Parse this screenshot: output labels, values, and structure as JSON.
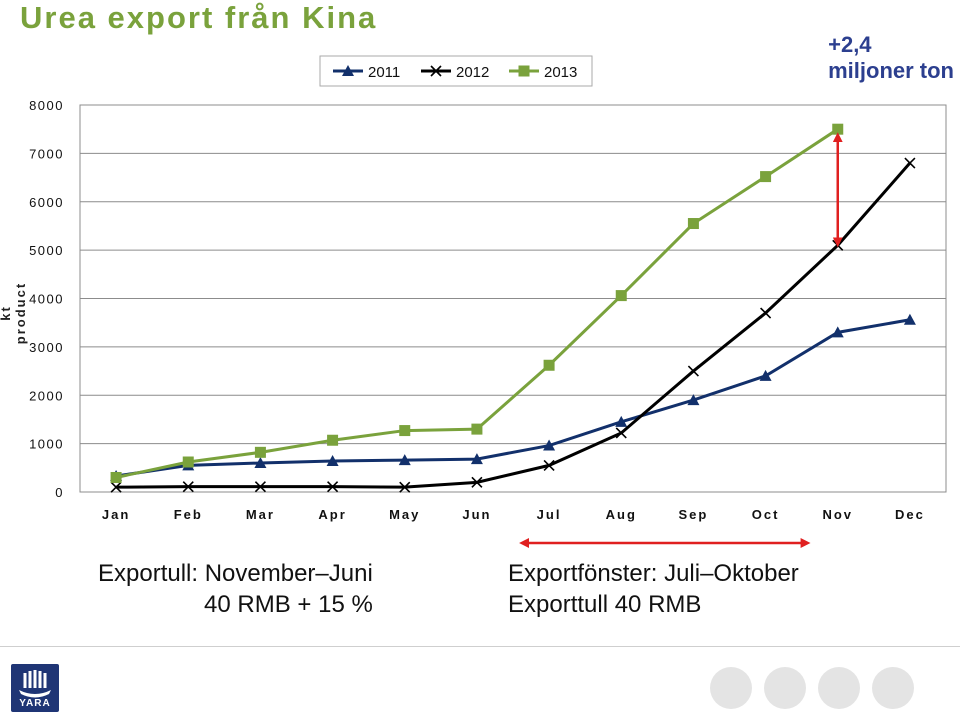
{
  "slide": {
    "title": "Urea export från Kina",
    "annotation_line1": "+2,4",
    "annotation_line2": "miljoner ton",
    "note_left_line1": "Exportull: November–Juni",
    "note_left_line2": "40 RMB + 15 %",
    "note_right_line1": "Exportfönster: Juli–Oktober",
    "note_right_line2": "Exporttull 40 RMB",
    "logo_text": "YARA"
  },
  "colors": {
    "s2011": "#12306b",
    "s2012": "#000000",
    "s2013": "#7aa23c",
    "annotation": "#2c3f8f",
    "arrow": "#e02020"
  },
  "chart_data": {
    "type": "line",
    "ylabel": "kt product",
    "xlabel": "",
    "categories": [
      "Jan",
      "Feb",
      "Mar",
      "Apr",
      "May",
      "Jun",
      "Jul",
      "Aug",
      "Sep",
      "Oct",
      "Nov",
      "Dec"
    ],
    "ylim": [
      0,
      8000
    ],
    "yticks": [
      0,
      1000,
      2000,
      3000,
      4000,
      5000,
      6000,
      7000,
      8000
    ],
    "grid": true,
    "legend": "top-center",
    "series": [
      {
        "name": "2011",
        "marker": "triangle",
        "values": [
          330,
          550,
          600,
          640,
          660,
          680,
          960,
          1450,
          1900,
          2400,
          3300,
          3560
        ]
      },
      {
        "name": "2012",
        "marker": "x",
        "values": [
          100,
          110,
          110,
          110,
          100,
          200,
          550,
          1220,
          2500,
          3700,
          5100,
          6800
        ]
      },
      {
        "name": "2013",
        "marker": "square",
        "values": [
          300,
          620,
          820,
          1070,
          1270,
          1300,
          2620,
          4060,
          5550,
          6520,
          7500,
          null
        ]
      }
    ],
    "annotations": [
      {
        "type": "vertical-double-arrow",
        "category": "Nov",
        "from": 5100,
        "to": 7500
      },
      {
        "type": "horizontal-double-arrow",
        "from_category": "Jul",
        "to_category": "Oct"
      }
    ]
  }
}
